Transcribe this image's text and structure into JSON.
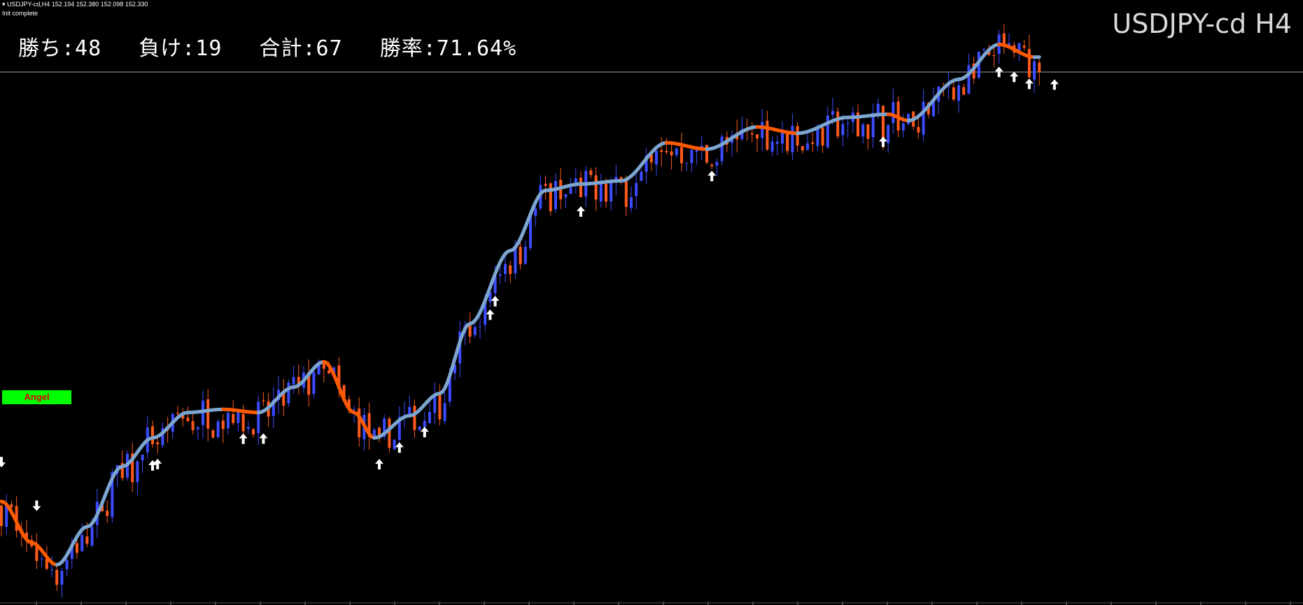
{
  "header": {
    "info": "USDJPY-cd,H4  152.194 152.380 152.098 152.330",
    "status": "Init complete",
    "title": "USDJPY-cd H4"
  },
  "stats": {
    "wins": "勝ち:48",
    "losses": "負け:19",
    "total": "合計:67",
    "rate": "勝率:71.64%"
  },
  "indicator_label": "Angel",
  "colors": {
    "background": "#000000",
    "bull_candle": "#3c4cff",
    "bear_candle": "#ff5a1e",
    "ma_up": "#7ca5cf",
    "ma_down": "#ff5a00",
    "signal_arrow": "#ffffff",
    "label_bg": "#00ff00",
    "label_text": "#e00000"
  },
  "chart_data": {
    "type": "candlestick",
    "symbol": "USDJPY-cd",
    "timeframe": "H4",
    "bid_line": 152.33,
    "ohlc_last": {
      "open": 152.194,
      "high": 152.38,
      "low": 152.098,
      "close": 152.33
    },
    "trend": [
      {
        "bar": 0,
        "price": 138.6
      },
      {
        "bar": 6,
        "price": 137.3
      },
      {
        "bar": 11,
        "price": 136.6
      },
      {
        "bar": 17,
        "price": 137.8
      },
      {
        "bar": 24,
        "price": 139.7
      },
      {
        "bar": 30,
        "price": 140.6
      },
      {
        "bar": 37,
        "price": 141.4
      },
      {
        "bar": 44,
        "price": 141.5
      },
      {
        "bar": 51,
        "price": 141.4
      },
      {
        "bar": 58,
        "price": 142.2
      },
      {
        "bar": 64,
        "price": 143.0
      },
      {
        "bar": 70,
        "price": 141.4
      },
      {
        "bar": 74,
        "price": 140.6
      },
      {
        "bar": 81,
        "price": 141.3
      },
      {
        "bar": 87,
        "price": 142.0
      },
      {
        "bar": 93,
        "price": 144.2
      },
      {
        "bar": 101,
        "price": 146.5
      },
      {
        "bar": 108,
        "price": 148.4
      },
      {
        "bar": 115,
        "price": 148.6
      },
      {
        "bar": 123,
        "price": 148.7
      },
      {
        "bar": 132,
        "price": 149.9
      },
      {
        "bar": 140,
        "price": 149.7
      },
      {
        "bar": 150,
        "price": 150.4
      },
      {
        "bar": 158,
        "price": 150.2
      },
      {
        "bar": 168,
        "price": 150.7
      },
      {
        "bar": 176,
        "price": 150.8
      },
      {
        "bar": 180,
        "price": 150.6
      },
      {
        "bar": 190,
        "price": 151.9
      },
      {
        "bar": 198,
        "price": 153.0
      },
      {
        "bar": 205,
        "price": 152.6
      }
    ],
    "ylim": [
      135.6,
      154.6
    ],
    "buy_signals": [
      30,
      31,
      48,
      52,
      75,
      79,
      84,
      97,
      98,
      115,
      141,
      175,
      198,
      201,
      204,
      209
    ],
    "sell_signals": [
      0,
      7
    ],
    "bars": 207
  }
}
